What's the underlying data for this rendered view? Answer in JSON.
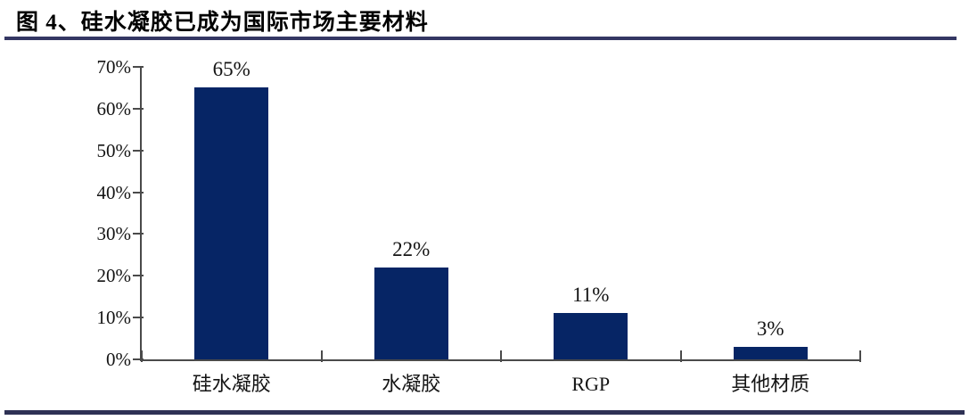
{
  "figure": {
    "title": "图 4、硅水凝胶已成为国际市场主要材料"
  },
  "colors": {
    "bar": "#062565",
    "rule_top": "#343763",
    "rule_bottom": "#2e3154",
    "axis": "#4a4a4a",
    "text": "#141414"
  },
  "chart_data": {
    "type": "bar",
    "title": "图 4、硅水凝胶已成为国际市场主要材料",
    "categories": [
      "硅水凝胶",
      "水凝胶",
      "RGP",
      "其他材质"
    ],
    "values": [
      65,
      22,
      11,
      3
    ],
    "value_labels": [
      "65%",
      "22%",
      "11%",
      "3%"
    ],
    "xlabel": "",
    "ylabel": "",
    "ylim": [
      0,
      70
    ],
    "y_tick_step": 10,
    "y_tick_labels": [
      "0%",
      "10%",
      "20%",
      "30%",
      "40%",
      "50%",
      "60%",
      "70%"
    ],
    "grid": false,
    "legend": "none",
    "bar_color": "#062565"
  }
}
